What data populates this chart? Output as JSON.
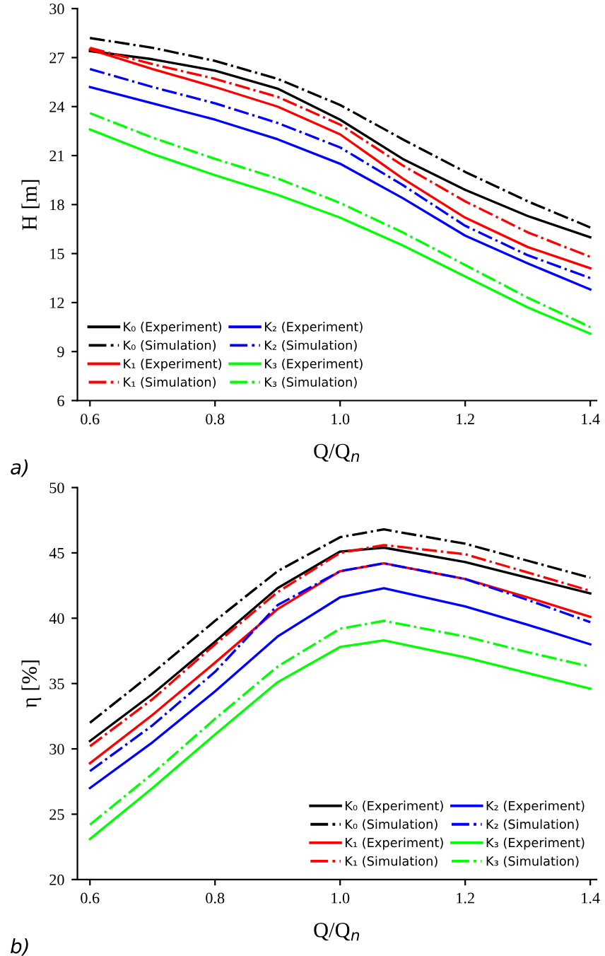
{
  "chart_data": [
    {
      "type": "line",
      "x": [
        0.6,
        0.7,
        0.8,
        0.9,
        1.0,
        1.1,
        1.2,
        1.3,
        1.4
      ],
      "xlabel": "Q/Q$_{n}$",
      "ylabel": "H [m]",
      "xlim": [
        0.58,
        1.41
      ],
      "ylim": [
        6,
        30
      ],
      "xticks": [
        {
          "value": 0.6,
          "label": "0.6"
        },
        {
          "value": 0.8,
          "label": "0.8"
        },
        {
          "value": 1.0,
          "label": "1.0"
        },
        {
          "value": 1.2,
          "label": "1.2"
        },
        {
          "value": 1.4,
          "label": "1.4"
        }
      ],
      "yticks": [
        6,
        9,
        12,
        15,
        18,
        21,
        24,
        27,
        30
      ],
      "legend": "bottom left",
      "grid": false,
      "marker": "none",
      "annotations": [
        "a)"
      ],
      "series": [
        {
          "name": "K₀ (Experiment)",
          "color": "#000000",
          "line_style": "solid",
          "values": [
            27.4,
            26.9,
            26.2,
            25.1,
            23.2,
            20.8,
            18.9,
            17.3,
            16.0
          ]
        },
        {
          "name": "K₀ (Simulation)",
          "color": "#000000",
          "line_style": "dashdot",
          "values": [
            28.2,
            27.6,
            26.8,
            25.7,
            24.1,
            22.0,
            20.0,
            18.2,
            16.6
          ]
        },
        {
          "name": "K₁ (Experiment)",
          "color": "#ff0000",
          "line_style": "solid",
          "values": [
            27.5,
            26.3,
            25.2,
            24.0,
            22.3,
            19.6,
            17.2,
            15.4,
            14.1
          ]
        },
        {
          "name": "K₁ (Simulation)",
          "color": "#ff0000",
          "line_style": "dashdot",
          "values": [
            27.6,
            26.6,
            25.7,
            24.6,
            22.9,
            20.4,
            18.2,
            16.3,
            14.8
          ]
        },
        {
          "name": "K₂ (Experiment)",
          "color": "#0000ff",
          "line_style": "solid",
          "values": [
            25.2,
            24.2,
            23.2,
            22.0,
            20.5,
            18.4,
            16.1,
            14.4,
            12.8
          ]
        },
        {
          "name": "K₂ (Simulation)",
          "color": "#0000ff",
          "line_style": "dashdot",
          "values": [
            26.3,
            25.2,
            24.2,
            23.0,
            21.5,
            19.2,
            16.7,
            14.9,
            13.5
          ]
        },
        {
          "name": "K₃ (Experiment)",
          "color": "#00ff00",
          "line_style": "solid",
          "values": [
            22.6,
            21.1,
            19.8,
            18.6,
            17.2,
            15.5,
            13.6,
            11.7,
            10.1
          ]
        },
        {
          "name": "K₃ (Simulation)",
          "color": "#00ff00",
          "line_style": "dashdot",
          "values": [
            23.6,
            22.1,
            20.8,
            19.6,
            18.1,
            16.3,
            14.3,
            12.3,
            10.5
          ]
        }
      ]
    },
    {
      "type": "line",
      "x": [
        0.6,
        0.7,
        0.8,
        0.9,
        1.0,
        1.07,
        1.2,
        1.3,
        1.4
      ],
      "xlabel": "Q/Q$_{n}$",
      "ylabel": "η [%]",
      "xlim": [
        0.58,
        1.41
      ],
      "ylim": [
        20,
        50
      ],
      "xticks": [
        {
          "value": 0.6,
          "label": "0.6"
        },
        {
          "value": 0.8,
          "label": "0.8"
        },
        {
          "value": 1.0,
          "label": "1.0"
        },
        {
          "value": 1.2,
          "label": "1.2"
        },
        {
          "value": 1.4,
          "label": "1.4"
        }
      ],
      "yticks": [
        20,
        25,
        30,
        35,
        40,
        45,
        50
      ],
      "legend": "bottom right",
      "grid": false,
      "marker": "none",
      "annotations": [
        "b)"
      ],
      "series": [
        {
          "name": "K₀ (Experiment)",
          "color": "#000000",
          "line_style": "solid",
          "values": [
            30.6,
            34.2,
            38.2,
            42.3,
            45.1,
            45.4,
            44.3,
            43.1,
            41.9
          ]
        },
        {
          "name": "K₀ (Simulation)",
          "color": "#000000",
          "line_style": "dashdot",
          "values": [
            32.0,
            35.8,
            39.8,
            43.6,
            46.2,
            46.8,
            45.7,
            44.4,
            43.1
          ]
        },
        {
          "name": "K₁ (Experiment)",
          "color": "#ff0000",
          "line_style": "solid",
          "values": [
            28.9,
            32.6,
            36.6,
            40.7,
            43.6,
            44.2,
            43.0,
            41.6,
            40.1
          ]
        },
        {
          "name": "K₁ (Simulation)",
          "color": "#ff0000",
          "line_style": "dashdot",
          "values": [
            30.2,
            33.8,
            38.0,
            42.0,
            45.0,
            45.6,
            44.9,
            43.5,
            42.1
          ]
        },
        {
          "name": "K₂ (Experiment)",
          "color": "#0000ff",
          "line_style": "solid",
          "values": [
            27.0,
            30.5,
            34.4,
            38.6,
            41.6,
            42.3,
            40.9,
            39.5,
            38.0
          ]
        },
        {
          "name": "K₂ (Simulation)",
          "color": "#0000ff",
          "line_style": "dashdot",
          "values": [
            28.3,
            31.8,
            35.9,
            41.0,
            43.6,
            44.2,
            43.0,
            41.4,
            39.7
          ]
        },
        {
          "name": "K₃ (Experiment)",
          "color": "#00ff00",
          "line_style": "solid",
          "values": [
            23.1,
            27.0,
            31.1,
            35.1,
            37.8,
            38.3,
            37.0,
            35.8,
            34.6
          ]
        },
        {
          "name": "K₃ (Simulation)",
          "color": "#00ff00",
          "line_style": "dashdot",
          "values": [
            24.2,
            28.1,
            32.3,
            36.3,
            39.2,
            39.8,
            38.6,
            37.4,
            36.3
          ]
        }
      ]
    }
  ]
}
